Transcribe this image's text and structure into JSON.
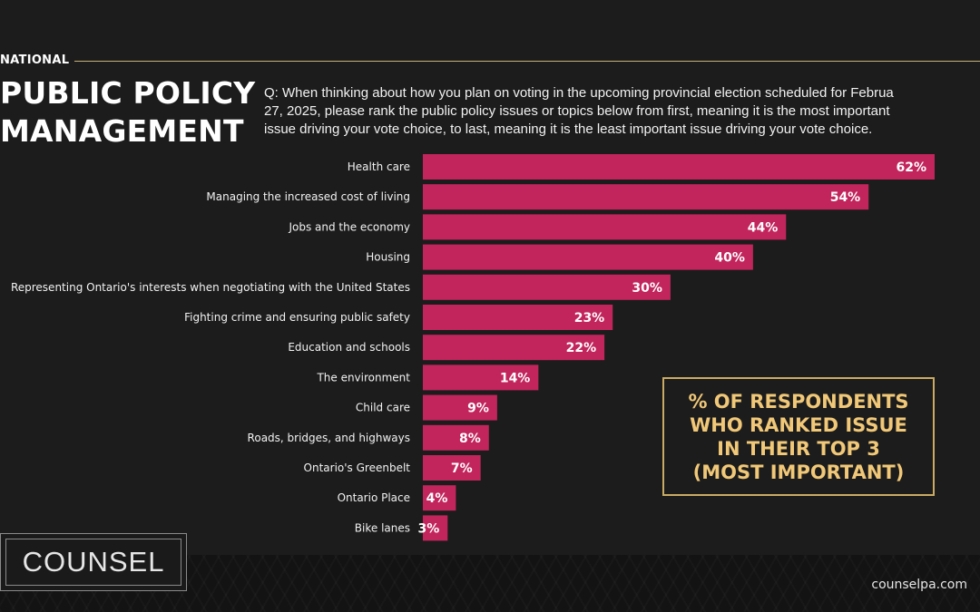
{
  "header": {
    "section": "NATIONAL",
    "title_lines": [
      "PUBLIC POLICY",
      "MANAGEMENT"
    ]
  },
  "question": {
    "lines": [
      "Q: When thinking about how you plan on voting in the upcoming provincial election scheduled for Februa",
      "27, 2025, please rank the public policy issues or topics below from first, meaning it is the most important",
      "issue driving your vote choice, to last, meaning it is the least important issue driving your vote choice."
    ]
  },
  "callout": {
    "lines": [
      "% OF RESPONDENTS",
      "WHO RANKED ISSUE",
      "IN THEIR TOP 3",
      "(MOST IMPORTANT)"
    ]
  },
  "brand": {
    "logo": "COUNSEL",
    "website": "counselpa.com"
  },
  "colors": {
    "bar": "#c2255c",
    "background": "#1c1c1c",
    "accent_gold": "#c9ab64"
  },
  "chart_data": {
    "type": "bar",
    "orientation": "horizontal",
    "categories": [
      "Health care",
      "Managing the increased cost of living",
      "Jobs and the economy",
      "Housing",
      "Representing Ontario's interests when negotiating with the United States",
      "Fighting crime and ensuring public safety",
      "Education and schools",
      "The environment",
      "Child care",
      "Roads, bridges, and highways",
      "Ontario's Greenbelt",
      "Ontario Place",
      "Bike lanes"
    ],
    "values": [
      62,
      54,
      44,
      40,
      30,
      23,
      22,
      14,
      9,
      8,
      7,
      4,
      3
    ],
    "value_labels": [
      "62%",
      "54%",
      "44%",
      "40%",
      "30%",
      "23%",
      "22%",
      "14%",
      "9%",
      "8%",
      "7%",
      "4%",
      "3%"
    ],
    "xlim": [
      0,
      62
    ],
    "grid": false,
    "legend": "none"
  }
}
